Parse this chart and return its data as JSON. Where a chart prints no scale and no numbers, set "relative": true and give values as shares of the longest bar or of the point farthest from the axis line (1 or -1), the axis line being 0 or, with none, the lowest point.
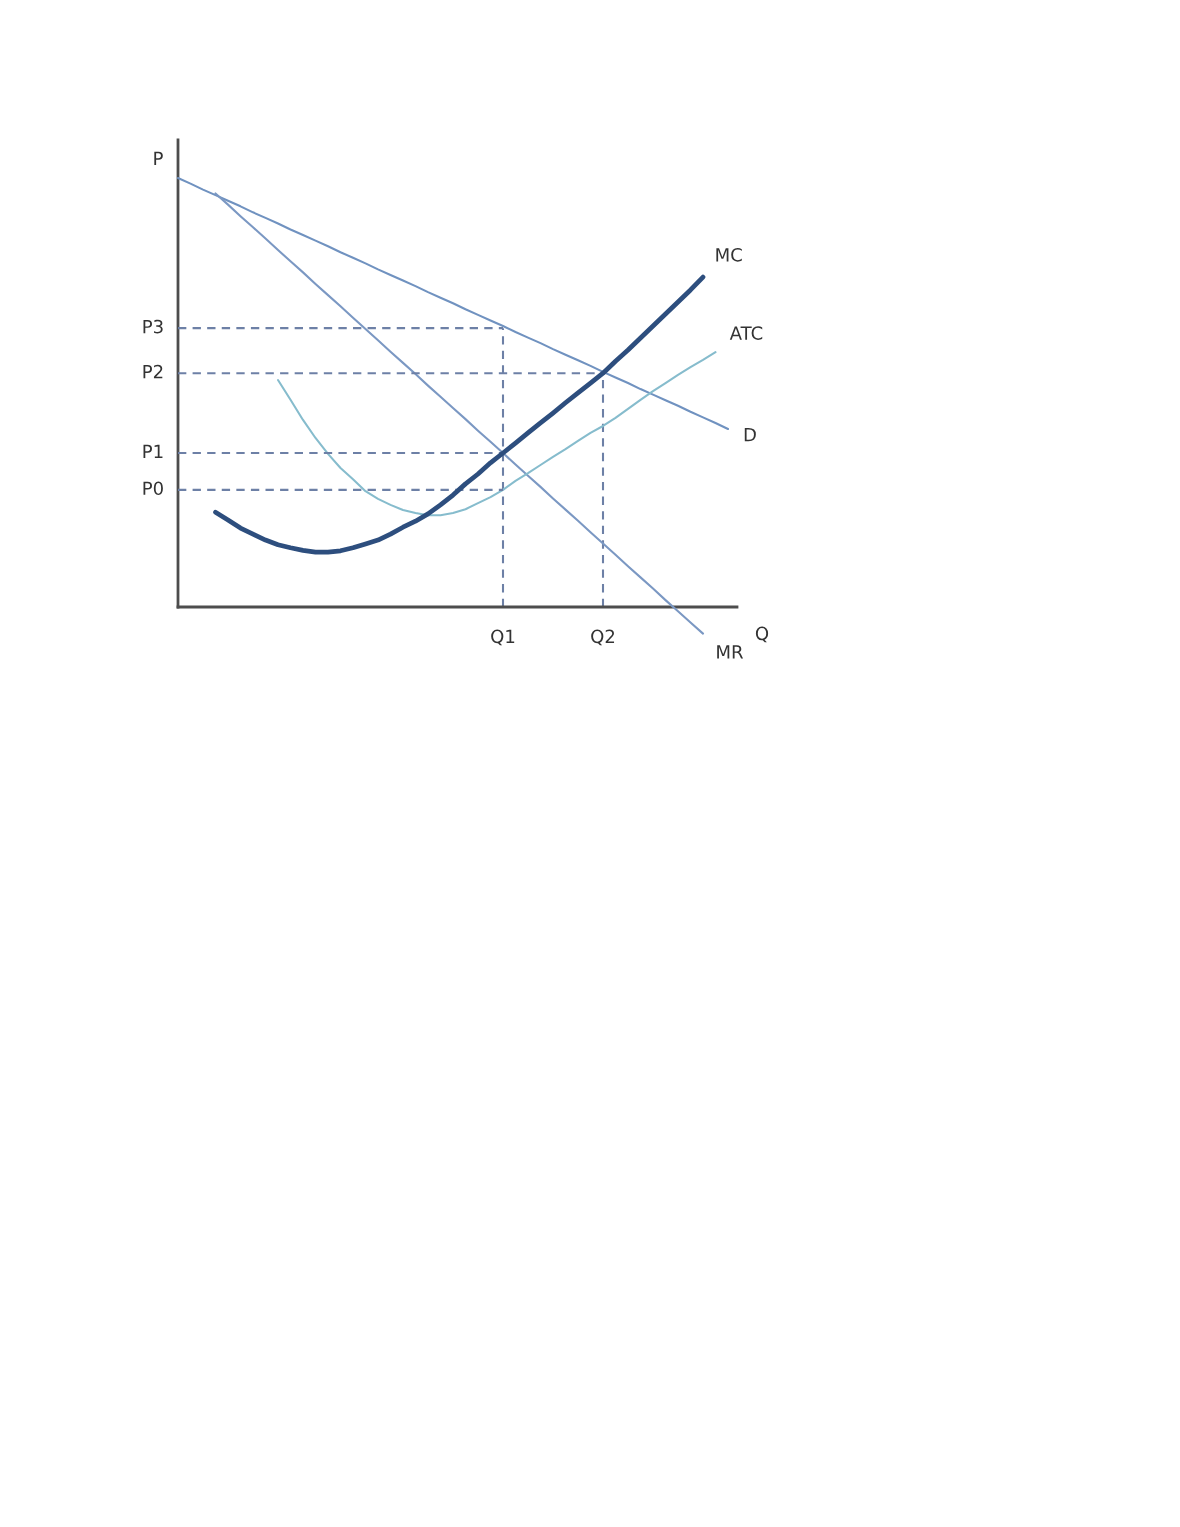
{
  "chart_data": {
    "type": "line",
    "relative": true,
    "xlabel": "Q",
    "ylabel": "P",
    "line_style": "solid",
    "categories": [
      null,
      null,
      null,
      null,
      null,
      null,
      null,
      null,
      null,
      null,
      null,
      null,
      null,
      null,
      null,
      null,
      null,
      null,
      null,
      null,
      null,
      null,
      null,
      null,
      null,
      null,
      "Q1",
      null,
      null,
      null,
      null,
      null,
      null,
      null,
      "Q2",
      null,
      null,
      null,
      null,
      null,
      null,
      null,
      null,
      null,
      null
    ],
    "series": [
      {
        "name": "D",
        "color": "#7092c0",
        "values": [
          1.0,
          0.987,
          0.973,
          0.96,
          0.947,
          0.934,
          0.92,
          0.907,
          0.894,
          0.88,
          0.867,
          0.854,
          0.841,
          0.827,
          0.814,
          0.801,
          0.787,
          0.774,
          0.761,
          0.748,
          0.734,
          0.721,
          0.708,
          0.694,
          0.681,
          0.668,
          0.655,
          0.641,
          0.628,
          0.615,
          0.601,
          0.588,
          0.575,
          0.562,
          0.548,
          0.535,
          0.522,
          0.508,
          0.495,
          0.482,
          0.469,
          0.455,
          0.442,
          0.429,
          0.415
        ]
      },
      {
        "name": "MR",
        "color": "#7b98c3",
        "values": [
          null,
          null,
          null,
          0.964,
          0.938,
          0.911,
          0.885,
          0.859,
          0.832,
          0.806,
          0.78,
          0.753,
          0.727,
          0.701,
          0.674,
          0.648,
          0.622,
          0.595,
          0.569,
          0.543,
          0.516,
          0.49,
          0.464,
          0.438,
          0.411,
          0.385,
          0.359,
          0.332,
          0.306,
          0.28,
          0.253,
          0.227,
          0.201,
          0.174,
          0.148,
          0.122,
          0.095,
          0.069,
          0.043,
          0.016,
          -0.01,
          -0.036,
          -0.062,
          null,
          null
        ]
      },
      {
        "name": "MC",
        "color": "#2d4e7e",
        "values": [
          null,
          null,
          null,
          0.221,
          0.203,
          0.184,
          0.17,
          0.156,
          0.145,
          0.138,
          0.132,
          0.128,
          0.128,
          0.131,
          0.138,
          0.147,
          0.156,
          0.17,
          0.186,
          0.2,
          0.217,
          0.238,
          0.261,
          0.287,
          0.31,
          0.336,
          0.359,
          0.382,
          0.406,
          0.429,
          0.452,
          0.476,
          0.499,
          0.522,
          0.545,
          0.573,
          0.599,
          0.627,
          0.655,
          0.683,
          0.711,
          0.739,
          0.769,
          null,
          null
        ]
      },
      {
        "name": "ATC",
        "color": "#86bccd",
        "values": [
          null,
          null,
          null,
          null,
          null,
          null,
          null,
          null,
          0.529,
          0.483,
          0.436,
          0.394,
          0.357,
          0.324,
          0.298,
          0.27,
          0.252,
          0.238,
          0.226,
          0.219,
          0.214,
          0.214,
          0.219,
          0.228,
          0.242,
          0.256,
          0.273,
          0.294,
          0.312,
          0.331,
          0.35,
          0.368,
          0.387,
          0.406,
          0.422,
          0.441,
          0.462,
          0.483,
          0.503,
          0.522,
          0.541,
          0.559,
          0.576,
          0.594,
          null
        ]
      },
      {
        "name": "P3",
        "color": "#6d80a6",
        "line_style": "dashed",
        "values": [
          0.65,
          0.65,
          0.65,
          0.65,
          0.65,
          0.65,
          0.65,
          0.65,
          0.65,
          0.65,
          0.65,
          0.65,
          0.65,
          0.65,
          0.65,
          0.65,
          0.65,
          0.65,
          0.65,
          0.65,
          0.65,
          0.65,
          0.65,
          0.65,
          0.65,
          0.65,
          0.65,
          null,
          null,
          null,
          null,
          null,
          null,
          null,
          null,
          null,
          null,
          null,
          null,
          null,
          null,
          null,
          null,
          null,
          null
        ]
      },
      {
        "name": "P2",
        "color": "#6d80a6",
        "line_style": "dashed",
        "values": [
          0.545,
          0.545,
          0.545,
          0.545,
          0.545,
          0.545,
          0.545,
          0.545,
          0.545,
          0.545,
          0.545,
          0.545,
          0.545,
          0.545,
          0.545,
          0.545,
          0.545,
          0.545,
          0.545,
          0.545,
          0.545,
          0.545,
          0.545,
          0.545,
          0.545,
          0.545,
          0.545,
          0.545,
          0.545,
          0.545,
          0.545,
          0.545,
          0.545,
          0.545,
          0.545,
          null,
          null,
          null,
          null,
          null,
          null,
          null,
          null,
          null,
          null
        ]
      },
      {
        "name": "P1",
        "color": "#6d80a6",
        "line_style": "dashed",
        "values": [
          0.359,
          0.359,
          0.359,
          0.359,
          0.359,
          0.359,
          0.359,
          0.359,
          0.359,
          0.359,
          0.359,
          0.359,
          0.359,
          0.359,
          0.359,
          0.359,
          0.359,
          0.359,
          0.359,
          0.359,
          0.359,
          0.359,
          0.359,
          0.359,
          0.359,
          0.359,
          0.359,
          null,
          null,
          null,
          null,
          null,
          null,
          null,
          null,
          null,
          null,
          null,
          null,
          null,
          null,
          null,
          null,
          null,
          null
        ]
      },
      {
        "name": "P0",
        "color": "#6d80a6",
        "line_style": "dashed",
        "values": [
          0.273,
          0.273,
          0.273,
          0.273,
          0.273,
          0.273,
          0.273,
          0.273,
          0.273,
          0.273,
          0.273,
          0.273,
          0.273,
          0.273,
          0.273,
          0.273,
          0.273,
          0.273,
          0.273,
          0.273,
          0.273,
          0.273,
          0.273,
          0.273,
          0.273,
          0.273,
          0.273,
          null,
          null,
          null,
          null,
          null,
          null,
          null,
          null,
          null,
          null,
          null,
          null,
          null,
          null,
          null,
          null,
          null,
          null
        ]
      }
    ],
    "ref_lines": [
      {
        "axis": "x",
        "value": "Q1",
        "color": "#6d80a6",
        "line_style": "dashed"
      },
      {
        "axis": "x",
        "value": "Q2",
        "color": "#6d80a6",
        "line_style": "dashed"
      }
    ]
  }
}
